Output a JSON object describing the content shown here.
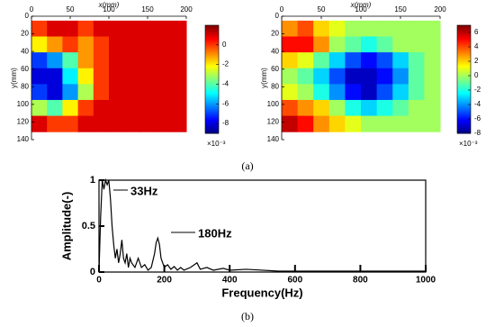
{
  "chart_data": [
    {
      "type": "heatmap",
      "xlabel": "x(mm)",
      "ylabel": "y(mm)",
      "colormap": "jet",
      "x": [
        10,
        30,
        50,
        70,
        90,
        110,
        130,
        150,
        170,
        190
      ],
      "y": [
        14,
        32,
        50,
        68,
        86,
        104,
        122
      ],
      "z": [
        [
          0,
          1,
          1,
          0,
          1,
          1,
          1,
          1,
          1,
          1
        ],
        [
          -2,
          -1,
          0,
          -1,
          0,
          1,
          1,
          1,
          1,
          1
        ],
        [
          -7,
          -6,
          -4,
          -1,
          0,
          1,
          1,
          1,
          1,
          1
        ],
        [
          -8,
          -8,
          -5,
          -2,
          0,
          1,
          1,
          1,
          1,
          1
        ],
        [
          -7,
          -8,
          -6,
          -3,
          0,
          1,
          1,
          1,
          1,
          1
        ],
        [
          -3,
          -4,
          -2,
          0,
          1,
          1,
          1,
          1,
          1,
          1
        ],
        [
          1,
          0,
          0,
          1,
          1,
          1,
          1,
          1,
          1,
          1
        ]
      ],
      "xlim": [
        0,
        200
      ],
      "ylim": [
        0,
        140
      ],
      "xticks": [
        0,
        50,
        100,
        150,
        200
      ],
      "yticks": [
        0,
        20,
        40,
        60,
        80,
        100,
        120,
        140
      ],
      "clim": [
        -9,
        2
      ],
      "cticks": [
        0,
        -2,
        -4,
        -6,
        -8
      ],
      "cbar_label": "×10⁻³"
    },
    {
      "type": "heatmap",
      "xlabel": "x(mm)",
      "ylabel": "y(mm)",
      "colormap": "jet",
      "x": [
        10,
        30,
        50,
        70,
        90,
        110,
        130,
        150,
        170,
        190
      ],
      "y": [
        14,
        32,
        50,
        68,
        86,
        104,
        122
      ],
      "z": [
        [
          3,
          4,
          2,
          1,
          0,
          0,
          0,
          0,
          0,
          0
        ],
        [
          5,
          5,
          3,
          0,
          -1,
          -2,
          -1,
          0,
          0,
          0
        ],
        [
          2,
          1,
          -1,
          -3,
          -5,
          -6,
          -5,
          -3,
          -1,
          0
        ],
        [
          0,
          -1,
          -3,
          -5,
          -7,
          -7,
          -6,
          -4,
          -1,
          0
        ],
        [
          1,
          0,
          -2,
          -4,
          -6,
          -7,
          -5,
          -3,
          -1,
          0
        ],
        [
          4,
          3,
          2,
          0,
          -2,
          -3,
          -2,
          -1,
          0,
          0
        ],
        [
          6,
          5,
          3,
          2,
          1,
          0,
          0,
          0,
          0,
          0
        ]
      ],
      "xlim": [
        0,
        200
      ],
      "ylim": [
        0,
        140
      ],
      "xticks": [
        0,
        50,
        100,
        150,
        200
      ],
      "yticks": [
        0,
        20,
        40,
        60,
        80,
        100,
        120,
        140
      ],
      "clim": [
        -8,
        7
      ],
      "cticks": [
        6,
        4,
        2,
        0,
        -2,
        -4,
        -6,
        -8
      ],
      "cbar_label": "×10⁻³"
    },
    {
      "type": "line",
      "xlabel": "Frequency(Hz)",
      "ylabel": "Amplitude(-)",
      "x": [
        0,
        5,
        10,
        15,
        20,
        25,
        30,
        35,
        40,
        45,
        50,
        55,
        60,
        65,
        70,
        75,
        80,
        85,
        90,
        95,
        100,
        110,
        120,
        130,
        140,
        150,
        160,
        170,
        175,
        180,
        185,
        190,
        200,
        210,
        220,
        230,
        240,
        250,
        260,
        280,
        300,
        310,
        330,
        350,
        380,
        400,
        450,
        500,
        550,
        600,
        700,
        800,
        900,
        1000
      ],
      "series": [
        {
          "color": "#000000",
          "values": [
            0,
            0.6,
            1,
            0.9,
            1,
            0.95,
            1,
            0.8,
            0.5,
            0.3,
            0.15,
            0.25,
            0.1,
            0.2,
            0.35,
            0.15,
            0.1,
            0.2,
            0.05,
            0.15,
            0.1,
            0.05,
            0.15,
            0.05,
            0.08,
            0.02,
            0.05,
            0.2,
            0.32,
            0.37,
            0.3,
            0.15,
            0.05,
            0.08,
            0.03,
            0.06,
            0.02,
            0.05,
            0.02,
            0.05,
            0.1,
            0.03,
            0.05,
            0.02,
            0.04,
            0.02,
            0.03,
            0.02,
            0.01,
            0.01,
            0.01,
            0.01,
            0.01,
            0.01
          ]
        }
      ],
      "xlim": [
        0,
        1000
      ],
      "ylim": [
        0,
        1
      ],
      "xticks": [
        0,
        200,
        400,
        600,
        800,
        1000
      ],
      "yticks": [
        0,
        0.5,
        1
      ],
      "annotations": [
        {
          "text": "33Hz"
        },
        {
          "text": "180Hz"
        }
      ]
    }
  ],
  "labels": [
    "(a)",
    "(b)"
  ]
}
